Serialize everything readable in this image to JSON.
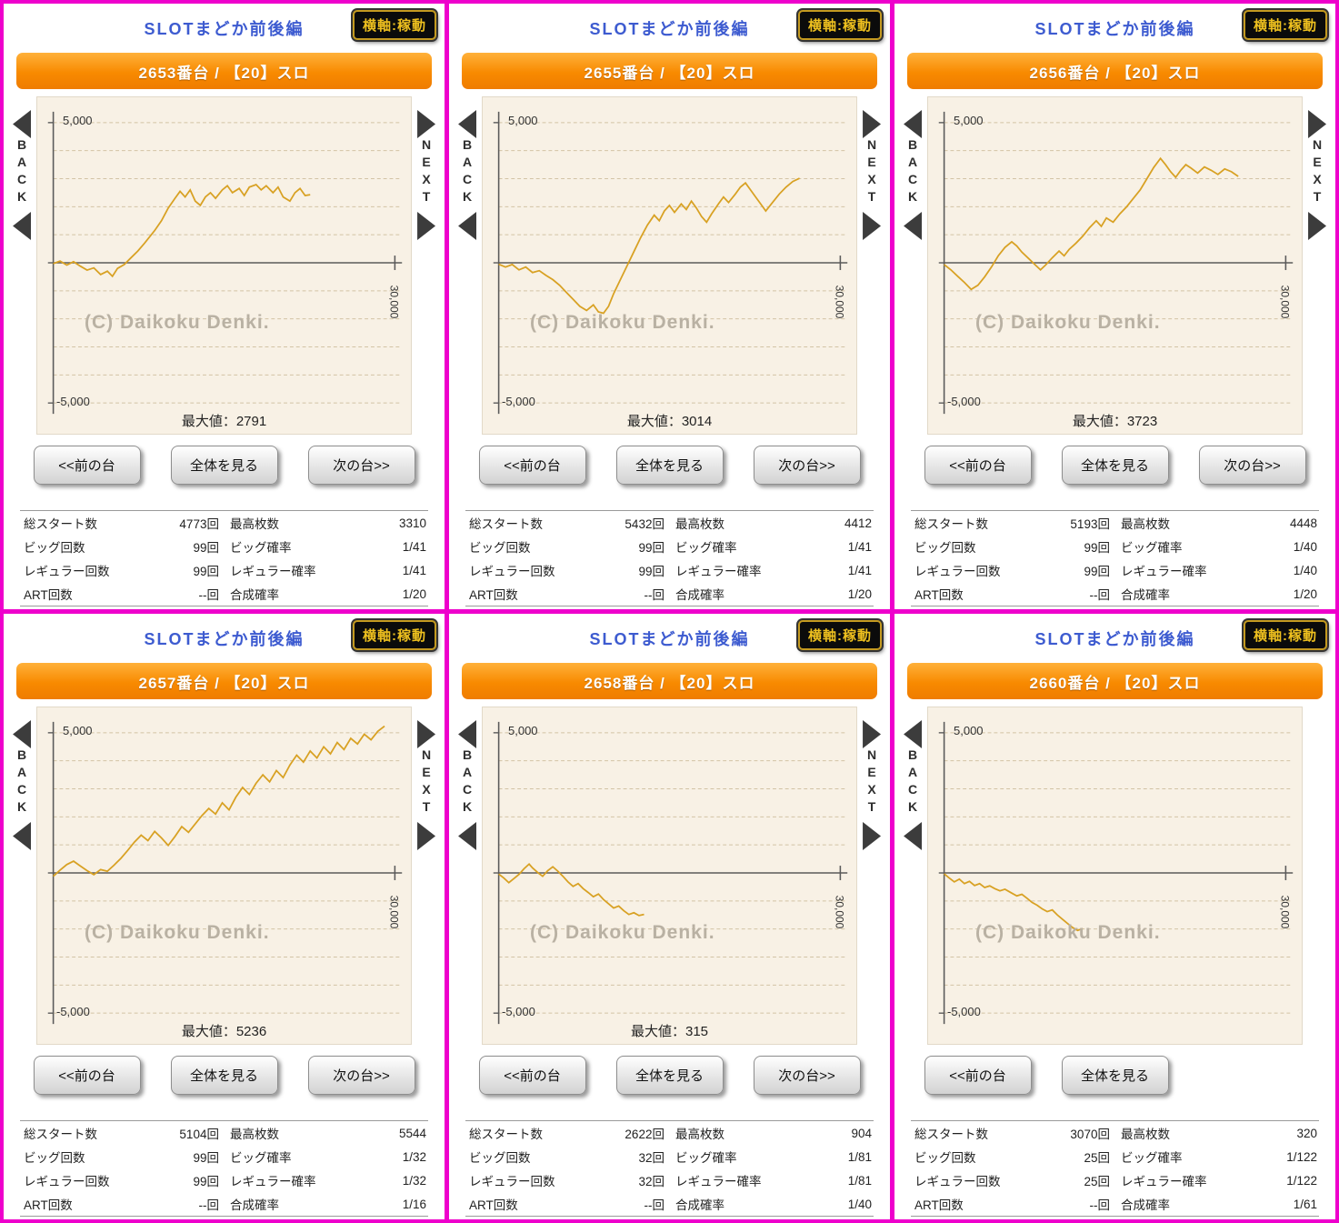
{
  "colors": {
    "frame_magenta": "#ee00cc",
    "banner_orange": "#f88a00",
    "title_blue": "#3d5bd0",
    "line_gold": "#d8a123",
    "chart_bg": "#f8f1e5",
    "badge_gold": "#eec01f"
  },
  "panels": [
    {
      "title": "SLOTまどか前後編",
      "axis_badge": "横軸:稼動",
      "machine": "2653番台 / 【20】スロ",
      "back_label": "BACK",
      "next_label": "NEXT",
      "y_max_label": "5,000",
      "y_min_label": "-5,000",
      "x_label": "30,000",
      "watermark": "(C) Daikoku Denki.",
      "max_label": "最大値：2791",
      "has_next": true,
      "buttons": [
        "<<前の台",
        "全体を見る",
        "次の台>>"
      ],
      "stats": [
        {
          "l1": "総スタート数",
          "v1": "4773回",
          "l2": "最高枚数",
          "v2": "3310"
        },
        {
          "l1": "ビッグ回数",
          "v1": "99回",
          "l2": "ビッグ確率",
          "v2": "1/41"
        },
        {
          "l1": "レギュラー回数",
          "v1": "99回",
          "l2": "レギュラー確率",
          "v2": "1/41"
        },
        {
          "l1": "ART回数",
          "v1": "--回",
          "l2": "合成確率",
          "v2": "1/20"
        }
      ],
      "chart": {
        "type": "line",
        "y_range": [
          -5000,
          5000
        ],
        "x_axis_label": "30,000"
      },
      "series": [
        [
          0,
          -30
        ],
        [
          0.02,
          60
        ],
        [
          0.04,
          -80
        ],
        [
          0.06,
          40
        ],
        [
          0.08,
          -120
        ],
        [
          0.1,
          -260
        ],
        [
          0.12,
          -180
        ],
        [
          0.14,
          -420
        ],
        [
          0.16,
          -300
        ],
        [
          0.175,
          -480
        ],
        [
          0.19,
          -200
        ],
        [
          0.21,
          -60
        ],
        [
          0.23,
          180
        ],
        [
          0.25,
          420
        ],
        [
          0.27,
          700
        ],
        [
          0.3,
          1150
        ],
        [
          0.32,
          1500
        ],
        [
          0.34,
          1950
        ],
        [
          0.36,
          2300
        ],
        [
          0.375,
          2550
        ],
        [
          0.39,
          2350
        ],
        [
          0.405,
          2600
        ],
        [
          0.42,
          2200
        ],
        [
          0.435,
          2050
        ],
        [
          0.45,
          2350
        ],
        [
          0.465,
          2500
        ],
        [
          0.48,
          2300
        ],
        [
          0.5,
          2600
        ],
        [
          0.515,
          2750
        ],
        [
          0.53,
          2500
        ],
        [
          0.55,
          2650
        ],
        [
          0.565,
          2400
        ],
        [
          0.58,
          2700
        ],
        [
          0.6,
          2791
        ],
        [
          0.615,
          2600
        ],
        [
          0.63,
          2750
        ],
        [
          0.65,
          2500
        ],
        [
          0.665,
          2700
        ],
        [
          0.68,
          2350
        ],
        [
          0.7,
          2200
        ],
        [
          0.715,
          2500
        ],
        [
          0.73,
          2650
        ],
        [
          0.745,
          2400
        ],
        [
          0.76,
          2430
        ]
      ]
    },
    {
      "title": "SLOTまどか前後編",
      "axis_badge": "横軸:稼動",
      "machine": "2655番台 / 【20】スロ",
      "back_label": "BACK",
      "next_label": "NEXT",
      "y_max_label": "5,000",
      "y_min_label": "-5,000",
      "x_label": "30,000",
      "watermark": "(C) Daikoku Denki.",
      "max_label": "最大値：3014",
      "has_next": true,
      "buttons": [
        "<<前の台",
        "全体を見る",
        "次の台>>"
      ],
      "stats": [
        {
          "l1": "総スタート数",
          "v1": "5432回",
          "l2": "最高枚数",
          "v2": "4412"
        },
        {
          "l1": "ビッグ回数",
          "v1": "99回",
          "l2": "ビッグ確率",
          "v2": "1/41"
        },
        {
          "l1": "レギュラー回数",
          "v1": "99回",
          "l2": "レギュラー確率",
          "v2": "1/41"
        },
        {
          "l1": "ART回数",
          "v1": "--回",
          "l2": "合成確率",
          "v2": "1/20"
        }
      ],
      "chart": {
        "type": "line",
        "y_range": [
          -5000,
          5000
        ],
        "x_axis_label": "30,000"
      },
      "series": [
        [
          0,
          -50
        ],
        [
          0.02,
          -150
        ],
        [
          0.04,
          -60
        ],
        [
          0.06,
          -250
        ],
        [
          0.08,
          -150
        ],
        [
          0.1,
          -350
        ],
        [
          0.12,
          -280
        ],
        [
          0.14,
          -450
        ],
        [
          0.16,
          -600
        ],
        [
          0.18,
          -800
        ],
        [
          0.2,
          -1050
        ],
        [
          0.22,
          -1300
        ],
        [
          0.24,
          -1550
        ],
        [
          0.26,
          -1700
        ],
        [
          0.28,
          -1500
        ],
        [
          0.295,
          -1750
        ],
        [
          0.31,
          -1800
        ],
        [
          0.325,
          -1550
        ],
        [
          0.34,
          -1100
        ],
        [
          0.36,
          -600
        ],
        [
          0.38,
          -100
        ],
        [
          0.4,
          400
        ],
        [
          0.42,
          900
        ],
        [
          0.44,
          1350
        ],
        [
          0.46,
          1700
        ],
        [
          0.475,
          1500
        ],
        [
          0.49,
          1850
        ],
        [
          0.505,
          2050
        ],
        [
          0.52,
          1800
        ],
        [
          0.54,
          2100
        ],
        [
          0.555,
          1900
        ],
        [
          0.57,
          2200
        ],
        [
          0.585,
          1950
        ],
        [
          0.6,
          1650
        ],
        [
          0.615,
          1450
        ],
        [
          0.63,
          1750
        ],
        [
          0.65,
          2100
        ],
        [
          0.665,
          2350
        ],
        [
          0.68,
          2150
        ],
        [
          0.7,
          2450
        ],
        [
          0.715,
          2700
        ],
        [
          0.73,
          2850
        ],
        [
          0.745,
          2600
        ],
        [
          0.76,
          2350
        ],
        [
          0.775,
          2100
        ],
        [
          0.79,
          1850
        ],
        [
          0.81,
          2150
        ],
        [
          0.83,
          2450
        ],
        [
          0.85,
          2700
        ],
        [
          0.87,
          2900
        ],
        [
          0.89,
          3014
        ]
      ]
    },
    {
      "title": "SLOTまどか前後編",
      "axis_badge": "横軸:稼動",
      "machine": "2656番台 / 【20】スロ",
      "back_label": "BACK",
      "next_label": "NEXT",
      "y_max_label": "5,000",
      "y_min_label": "-5,000",
      "x_label": "30,000",
      "watermark": "(C) Daikoku Denki.",
      "max_label": "最大値：3723",
      "has_next": true,
      "buttons": [
        "<<前の台",
        "全体を見る",
        "次の台>>"
      ],
      "stats": [
        {
          "l1": "総スタート数",
          "v1": "5193回",
          "l2": "最高枚数",
          "v2": "4448"
        },
        {
          "l1": "ビッグ回数",
          "v1": "99回",
          "l2": "ビッグ確率",
          "v2": "1/40"
        },
        {
          "l1": "レギュラー回数",
          "v1": "99回",
          "l2": "レギュラー確率",
          "v2": "1/40"
        },
        {
          "l1": "ART回数",
          "v1": "--回",
          "l2": "合成確率",
          "v2": "1/20"
        }
      ],
      "chart": {
        "type": "line",
        "y_range": [
          -5000,
          5000
        ],
        "x_axis_label": "30,000"
      },
      "series": [
        [
          0,
          -60
        ],
        [
          0.02,
          -250
        ],
        [
          0.04,
          -480
        ],
        [
          0.06,
          -700
        ],
        [
          0.08,
          -950
        ],
        [
          0.1,
          -800
        ],
        [
          0.12,
          -500
        ],
        [
          0.14,
          -150
        ],
        [
          0.16,
          250
        ],
        [
          0.18,
          550
        ],
        [
          0.2,
          750
        ],
        [
          0.215,
          600
        ],
        [
          0.23,
          380
        ],
        [
          0.25,
          150
        ],
        [
          0.27,
          -80
        ],
        [
          0.285,
          -250
        ],
        [
          0.3,
          -80
        ],
        [
          0.32,
          180
        ],
        [
          0.34,
          420
        ],
        [
          0.355,
          250
        ],
        [
          0.37,
          480
        ],
        [
          0.39,
          700
        ],
        [
          0.41,
          950
        ],
        [
          0.43,
          1250
        ],
        [
          0.45,
          1500
        ],
        [
          0.465,
          1300
        ],
        [
          0.48,
          1600
        ],
        [
          0.5,
          1450
        ],
        [
          0.52,
          1750
        ],
        [
          0.54,
          2000
        ],
        [
          0.56,
          2300
        ],
        [
          0.58,
          2600
        ],
        [
          0.6,
          3000
        ],
        [
          0.62,
          3400
        ],
        [
          0.64,
          3723
        ],
        [
          0.655,
          3500
        ],
        [
          0.67,
          3250
        ],
        [
          0.685,
          3050
        ],
        [
          0.7,
          3300
        ],
        [
          0.715,
          3500
        ],
        [
          0.73,
          3380
        ],
        [
          0.75,
          3200
        ],
        [
          0.77,
          3420
        ],
        [
          0.79,
          3300
        ],
        [
          0.81,
          3150
        ],
        [
          0.83,
          3350
        ],
        [
          0.85,
          3250
        ],
        [
          0.87,
          3080
        ]
      ]
    },
    {
      "title": "SLOTまどか前後編",
      "axis_badge": "横軸:稼動",
      "machine": "2657番台 / 【20】スロ",
      "back_label": "BACK",
      "next_label": "NEXT",
      "y_max_label": "5,000",
      "y_min_label": "-5,000",
      "x_label": "30,000",
      "watermark": "(C) Daikoku Denki.",
      "max_label": "最大値：5236",
      "has_next": true,
      "buttons": [
        "<<前の台",
        "全体を見る",
        "次の台>>"
      ],
      "stats": [
        {
          "l1": "総スタート数",
          "v1": "5104回",
          "l2": "最高枚数",
          "v2": "5544"
        },
        {
          "l1": "ビッグ回数",
          "v1": "99回",
          "l2": "ビッグ確率",
          "v2": "1/32"
        },
        {
          "l1": "レギュラー回数",
          "v1": "99回",
          "l2": "レギュラー確率",
          "v2": "1/32"
        },
        {
          "l1": "ART回数",
          "v1": "--回",
          "l2": "合成確率",
          "v2": "1/16"
        }
      ],
      "chart": {
        "type": "line",
        "y_range": [
          -5000,
          5000
        ],
        "x_axis_label": "30,000"
      },
      "series": [
        [
          0,
          -120
        ],
        [
          0.02,
          100
        ],
        [
          0.04,
          300
        ],
        [
          0.06,
          420
        ],
        [
          0.08,
          250
        ],
        [
          0.1,
          80
        ],
        [
          0.12,
          -60
        ],
        [
          0.14,
          120
        ],
        [
          0.16,
          60
        ],
        [
          0.18,
          280
        ],
        [
          0.2,
          520
        ],
        [
          0.22,
          800
        ],
        [
          0.24,
          1100
        ],
        [
          0.26,
          1350
        ],
        [
          0.28,
          1150
        ],
        [
          0.3,
          1480
        ],
        [
          0.32,
          1250
        ],
        [
          0.34,
          980
        ],
        [
          0.36,
          1300
        ],
        [
          0.38,
          1650
        ],
        [
          0.4,
          1450
        ],
        [
          0.42,
          1750
        ],
        [
          0.44,
          2050
        ],
        [
          0.46,
          2300
        ],
        [
          0.48,
          2100
        ],
        [
          0.5,
          2500
        ],
        [
          0.52,
          2250
        ],
        [
          0.54,
          2700
        ],
        [
          0.56,
          3050
        ],
        [
          0.58,
          2800
        ],
        [
          0.6,
          3200
        ],
        [
          0.62,
          3500
        ],
        [
          0.64,
          3250
        ],
        [
          0.66,
          3650
        ],
        [
          0.68,
          3400
        ],
        [
          0.7,
          3850
        ],
        [
          0.72,
          4200
        ],
        [
          0.74,
          3950
        ],
        [
          0.76,
          4350
        ],
        [
          0.78,
          4100
        ],
        [
          0.8,
          4500
        ],
        [
          0.82,
          4250
        ],
        [
          0.84,
          4650
        ],
        [
          0.86,
          4400
        ],
        [
          0.88,
          4800
        ],
        [
          0.9,
          4600
        ],
        [
          0.92,
          4950
        ],
        [
          0.94,
          4750
        ],
        [
          0.96,
          5050
        ],
        [
          0.98,
          5236
        ]
      ]
    },
    {
      "title": "SLOTまどか前後編",
      "axis_badge": "横軸:稼動",
      "machine": "2658番台 / 【20】スロ",
      "back_label": "BACK",
      "next_label": "NEXT",
      "y_max_label": "5,000",
      "y_min_label": "-5,000",
      "x_label": "30,000",
      "watermark": "(C) Daikoku Denki.",
      "max_label": "最大値：315",
      "has_next": true,
      "buttons": [
        "<<前の台",
        "全体を見る",
        "次の台>>"
      ],
      "stats": [
        {
          "l1": "総スタート数",
          "v1": "2622回",
          "l2": "最高枚数",
          "v2": "904"
        },
        {
          "l1": "ビッグ回数",
          "v1": "32回",
          "l2": "ビッグ確率",
          "v2": "1/81"
        },
        {
          "l1": "レギュラー回数",
          "v1": "32回",
          "l2": "レギュラー確率",
          "v2": "1/81"
        },
        {
          "l1": "ART回数",
          "v1": "--回",
          "l2": "合成確率",
          "v2": "1/40"
        }
      ],
      "chart": {
        "type": "line",
        "y_range": [
          -5000,
          5000
        ],
        "x_axis_label": "30,000"
      },
      "series": [
        [
          0,
          -40
        ],
        [
          0.015,
          -180
        ],
        [
          0.03,
          -350
        ],
        [
          0.045,
          -200
        ],
        [
          0.06,
          -50
        ],
        [
          0.075,
          150
        ],
        [
          0.09,
          315
        ],
        [
          0.1,
          180
        ],
        [
          0.115,
          20
        ],
        [
          0.13,
          -120
        ],
        [
          0.145,
          80
        ],
        [
          0.16,
          220
        ],
        [
          0.175,
          60
        ],
        [
          0.19,
          -120
        ],
        [
          0.205,
          -320
        ],
        [
          0.22,
          -480
        ],
        [
          0.235,
          -380
        ],
        [
          0.25,
          -560
        ],
        [
          0.265,
          -700
        ],
        [
          0.28,
          -850
        ],
        [
          0.295,
          -750
        ],
        [
          0.31,
          -950
        ],
        [
          0.325,
          -1100
        ],
        [
          0.34,
          -1250
        ],
        [
          0.355,
          -1180
        ],
        [
          0.37,
          -1350
        ],
        [
          0.385,
          -1480
        ],
        [
          0.4,
          -1420
        ],
        [
          0.415,
          -1520
        ],
        [
          0.43,
          -1480
        ]
      ]
    },
    {
      "title": "SLOTまどか前後編",
      "axis_badge": "横軸:稼動",
      "machine": "2660番台 / 【20】スロ",
      "back_label": "BACK",
      "next_label": "NEXT",
      "y_max_label": "5,000",
      "y_min_label": "-5,000",
      "x_label": "30,000",
      "watermark": "(C) Daikoku Denki.",
      "max_label": "",
      "has_next": false,
      "buttons": [
        "<<前の台",
        "全体を見る"
      ],
      "stats": [
        {
          "l1": "総スタート数",
          "v1": "3070回",
          "l2": "最高枚数",
          "v2": "320"
        },
        {
          "l1": "ビッグ回数",
          "v1": "25回",
          "l2": "ビッグ確率",
          "v2": "1/122"
        },
        {
          "l1": "レギュラー回数",
          "v1": "25回",
          "l2": "レギュラー確率",
          "v2": "1/122"
        },
        {
          "l1": "ART回数",
          "v1": "--回",
          "l2": "合成確率",
          "v2": "1/61"
        }
      ],
      "chart": {
        "type": "line",
        "y_range": [
          -5000,
          5000
        ],
        "x_axis_label": "30,000"
      },
      "series": [
        [
          0,
          -30
        ],
        [
          0.015,
          -180
        ],
        [
          0.03,
          -320
        ],
        [
          0.045,
          -220
        ],
        [
          0.06,
          -380
        ],
        [
          0.075,
          -300
        ],
        [
          0.09,
          -450
        ],
        [
          0.105,
          -380
        ],
        [
          0.12,
          -520
        ],
        [
          0.135,
          -460
        ],
        [
          0.15,
          -560
        ],
        [
          0.165,
          -640
        ],
        [
          0.18,
          -580
        ],
        [
          0.2,
          -720
        ],
        [
          0.215,
          -820
        ],
        [
          0.23,
          -760
        ],
        [
          0.245,
          -900
        ],
        [
          0.26,
          -1050
        ],
        [
          0.275,
          -1150
        ],
        [
          0.29,
          -1280
        ],
        [
          0.305,
          -1380
        ],
        [
          0.32,
          -1320
        ],
        [
          0.335,
          -1500
        ],
        [
          0.35,
          -1650
        ],
        [
          0.365,
          -1800
        ],
        [
          0.38,
          -1950
        ],
        [
          0.395,
          -2050
        ],
        [
          0.41,
          -1980
        ]
      ]
    }
  ]
}
